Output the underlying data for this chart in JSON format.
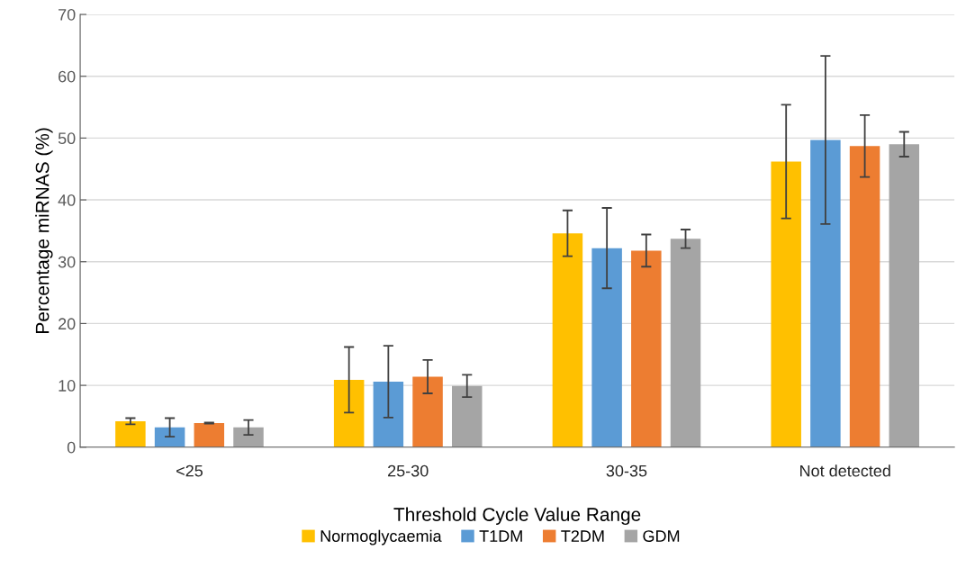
{
  "chart_data": {
    "type": "bar",
    "xlabel": "Threshold Cycle Value Range",
    "ylabel": "Percentage miRNAS (%)",
    "categories": [
      "<25",
      "25-30",
      "30-35",
      "Not detected"
    ],
    "series": [
      {
        "name": "Normoglycaemia",
        "color": "#ffc000",
        "values": [
          4.2,
          10.9,
          34.6,
          46.2
        ],
        "errors": [
          0.5,
          5.3,
          3.7,
          9.2
        ]
      },
      {
        "name": "T1DM",
        "color": "#5b9bd5",
        "values": [
          3.2,
          10.6,
          32.2,
          49.7
        ],
        "errors": [
          1.5,
          5.8,
          6.5,
          13.6
        ]
      },
      {
        "name": "T2DM",
        "color": "#ed7d31",
        "values": [
          3.9,
          11.4,
          31.8,
          48.7
        ],
        "errors": [
          0.1,
          2.7,
          2.6,
          5.0
        ]
      },
      {
        "name": "GDM",
        "color": "#a5a5a5",
        "values": [
          3.2,
          9.9,
          33.7,
          49.0
        ],
        "errors": [
          1.2,
          1.8,
          1.5,
          2.0
        ]
      }
    ],
    "ylim": [
      0,
      70
    ],
    "yticks": [
      0,
      10,
      20,
      30,
      40,
      50,
      60,
      70
    ],
    "grid": "y",
    "legend": "bottom"
  }
}
